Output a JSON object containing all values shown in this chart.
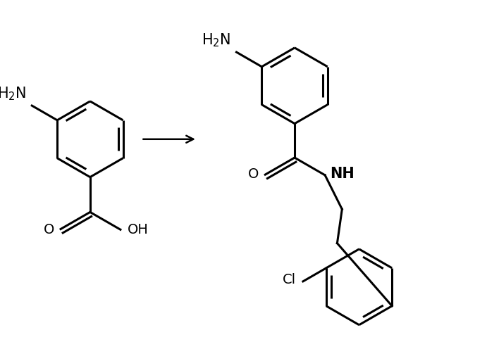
{
  "bg_color": "#ffffff",
  "line_color": "#000000",
  "line_width": 2.2,
  "font_size": 14,
  "figsize": [
    6.91,
    5.13
  ],
  "dpi": 100,
  "xlim": [
    0,
    10
  ],
  "ylim": [
    0,
    7.4
  ]
}
